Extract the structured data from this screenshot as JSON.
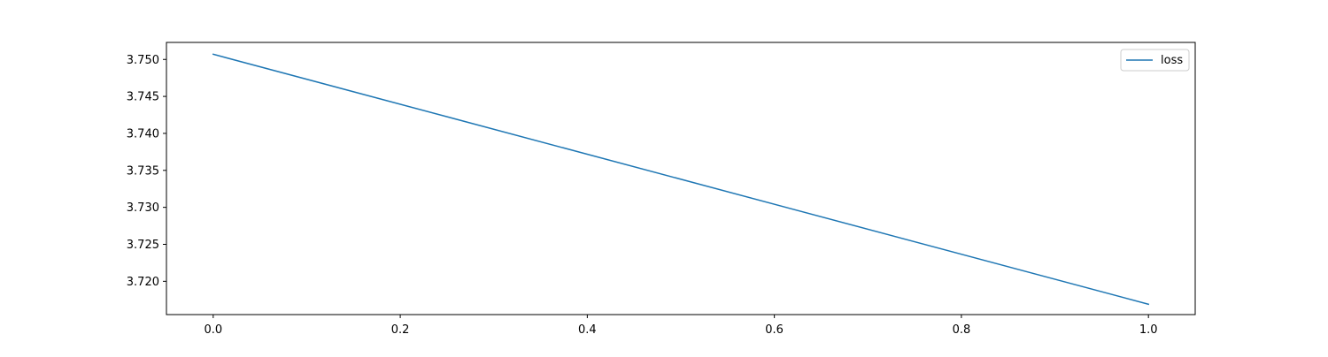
{
  "chart_data": {
    "type": "line",
    "title": "",
    "xlabel": "",
    "ylabel": "",
    "xlim": [
      -0.05,
      1.05
    ],
    "ylim": [
      3.7155,
      3.7523
    ],
    "xticks": [
      0.0,
      0.2,
      0.4,
      0.6,
      0.8,
      1.0
    ],
    "xtick_labels": [
      "0.0",
      "0.2",
      "0.4",
      "0.6",
      "0.8",
      "1.0"
    ],
    "yticks": [
      3.72,
      3.725,
      3.73,
      3.735,
      3.74,
      3.745,
      3.75
    ],
    "ytick_labels": [
      "3.720",
      "3.725",
      "3.730",
      "3.735",
      "3.740",
      "3.745",
      "3.750"
    ],
    "grid": false,
    "legend_position": "upper right",
    "series": [
      {
        "name": "loss",
        "color": "#1f77b4",
        "x": [
          0,
          1
        ],
        "y": [
          3.7507,
          3.7169
        ]
      }
    ]
  }
}
